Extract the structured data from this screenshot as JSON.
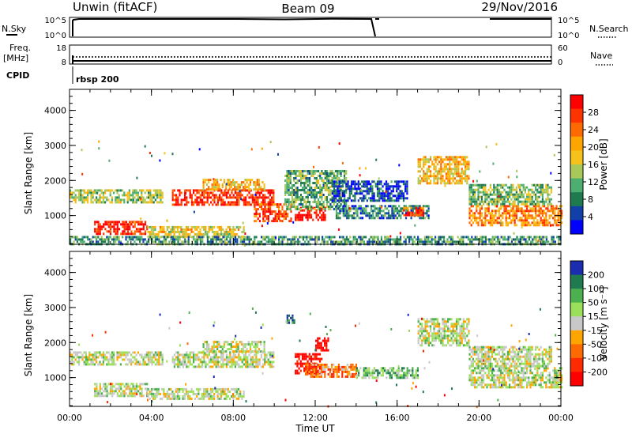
{
  "header": {
    "radar": "Unwin (fitACF)",
    "beam": "Beam 09",
    "date": "29/Nov/2016"
  },
  "status_panels": {
    "nsky_label": "N.Sky",
    "nsearch_label": "N.Search",
    "freq_label_line1": "Freq.",
    "freq_label_line2": "[MHz]",
    "nave_label": "Nave",
    "cpid_label": "CPID",
    "cpid_value": "rbsp 200",
    "nsky_ticks": [
      "10^5",
      "10^0"
    ],
    "nsearch_ticks": [
      "10^5",
      "10^0"
    ],
    "freq_ticks": [
      "18",
      "8"
    ],
    "nave_ticks": [
      "60",
      "0"
    ]
  },
  "chart_data": [
    {
      "type": "heatmap",
      "title": "",
      "xlabel": "",
      "ylabel": "Slant Range [km]",
      "x_ticks": [
        "00:00",
        "04:00",
        "08:00",
        "12:00",
        "16:00",
        "20:00",
        "00:00"
      ],
      "xlim": [
        0,
        24
      ],
      "ylim": [
        180,
        4600
      ],
      "y_ticks": [
        1000,
        2000,
        3000,
        4000
      ],
      "colorbar": {
        "label": "Power [dB]",
        "ticks": [
          "28",
          "24",
          "20",
          "16",
          "12",
          "8",
          "4"
        ],
        "colors": [
          "#ff0000",
          "#ff3300",
          "#ff6a00",
          "#ffa500",
          "#f4c21b",
          "#a8c85a",
          "#4caf70",
          "#1f7a50",
          "#1040a8",
          "#0000ff"
        ]
      },
      "regions": [
        {
          "t0": 0.0,
          "t1": 4.5,
          "r0": 1350,
          "r1": 1750,
          "level": 0.45
        },
        {
          "t0": 1.2,
          "t1": 3.8,
          "r0": 500,
          "r1": 850,
          "level": 0.9
        },
        {
          "t0": 3.8,
          "t1": 8.5,
          "r0": 400,
          "r1": 700,
          "level": 0.55
        },
        {
          "t0": 5.0,
          "t1": 10.0,
          "r0": 1300,
          "r1": 1750,
          "level": 0.88
        },
        {
          "t0": 6.5,
          "t1": 9.5,
          "r0": 1750,
          "r1": 2050,
          "level": 0.6
        },
        {
          "t0": 9.0,
          "t1": 10.8,
          "r0": 850,
          "r1": 1350,
          "level": 0.8
        },
        {
          "t0": 11.0,
          "t1": 12.5,
          "r0": 900,
          "r1": 1250,
          "level": 0.95
        },
        {
          "t0": 10.5,
          "t1": 13.5,
          "r0": 1200,
          "r1": 2300,
          "level": 0.35
        },
        {
          "t0": 12.8,
          "t1": 16.5,
          "r0": 1400,
          "r1": 2000,
          "level": 0.15
        },
        {
          "t0": 13.0,
          "t1": 17.5,
          "r0": 950,
          "r1": 1300,
          "level": 0.25
        },
        {
          "t0": 16.3,
          "t1": 17.3,
          "r0": 1000,
          "r1": 1250,
          "level": 0.85
        },
        {
          "t0": 17.0,
          "t1": 19.5,
          "r0": 1900,
          "r1": 2700,
          "level": 0.6
        },
        {
          "t0": 19.5,
          "t1": 24.0,
          "r0": 700,
          "r1": 1300,
          "level": 0.7
        },
        {
          "t0": 19.5,
          "t1": 23.5,
          "r0": 1300,
          "r1": 1900,
          "level": 0.4
        },
        {
          "t0": 0.0,
          "t1": 24.0,
          "r0": 180,
          "r1": 420,
          "level": 0.3
        }
      ]
    },
    {
      "type": "heatmap",
      "title": "",
      "xlabel": "Time UT",
      "ylabel": "Slant Range [km]",
      "x_ticks": [
        "00:00",
        "04:00",
        "08:00",
        "12:00",
        "16:00",
        "20:00",
        "00:00"
      ],
      "xlim": [
        0,
        24
      ],
      "ylim": [
        180,
        4600
      ],
      "y_ticks": [
        1000,
        2000,
        3000,
        4000
      ],
      "colorbar": {
        "label": "Velocity [m s⁻¹]",
        "ticks": [
          "200",
          "100",
          "50",
          "15",
          "-15",
          "-50",
          "-100",
          "-200"
        ],
        "colors": [
          "#1a2db0",
          "#1f7a50",
          "#4caf50",
          "#9be05a",
          "#c8c8c8",
          "#ffa500",
          "#ff6a00",
          "#ff2a00",
          "#ff0000"
        ]
      },
      "regions": [
        {
          "t0": 0.0,
          "t1": 4.5,
          "r0": 1350,
          "r1": 1750,
          "level": 0.55
        },
        {
          "t0": 1.2,
          "t1": 3.8,
          "r0": 500,
          "r1": 850,
          "level": 0.55
        },
        {
          "t0": 3.8,
          "t1": 8.5,
          "r0": 400,
          "r1": 700,
          "level": 0.55
        },
        {
          "t0": 5.0,
          "t1": 10.0,
          "r0": 1300,
          "r1": 1750,
          "level": 0.55
        },
        {
          "t0": 6.5,
          "t1": 9.5,
          "r0": 1750,
          "r1": 2050,
          "level": 0.55
        },
        {
          "t0": 11.0,
          "t1": 12.3,
          "r0": 1100,
          "r1": 1700,
          "level": 0.05
        },
        {
          "t0": 12.0,
          "t1": 12.6,
          "r0": 1800,
          "r1": 2150,
          "level": 0.02
        },
        {
          "t0": 11.5,
          "t1": 14.0,
          "r0": 1000,
          "r1": 1400,
          "level": 0.3
        },
        {
          "t0": 14.0,
          "t1": 17.0,
          "r0": 1000,
          "r1": 1300,
          "level": 0.66
        },
        {
          "t0": 10.6,
          "t1": 11.0,
          "r0": 2550,
          "r1": 2800,
          "level": 0.9
        },
        {
          "t0": 17.0,
          "t1": 19.5,
          "r0": 1900,
          "r1": 2700,
          "level": 0.55
        },
        {
          "t0": 19.5,
          "t1": 24.0,
          "r0": 700,
          "r1": 1300,
          "level": 0.55
        },
        {
          "t0": 19.5,
          "t1": 23.5,
          "r0": 1300,
          "r1": 1900,
          "level": 0.55
        }
      ]
    }
  ]
}
